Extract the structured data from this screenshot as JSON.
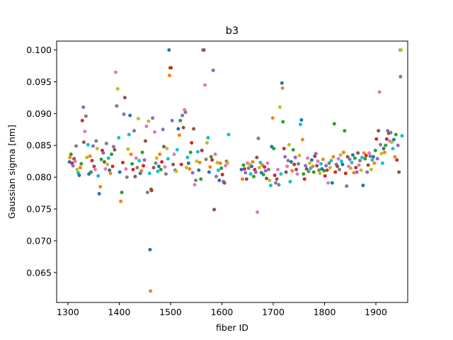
{
  "chart_data": {
    "type": "scatter",
    "title": "b3",
    "xlabel": "fiber ID",
    "ylabel": "Gaussian sigma [nm]",
    "xlim": [
      1278,
      1962
    ],
    "ylim": [
      0.0603,
      0.1014
    ],
    "xticks": [
      1300,
      1400,
      1500,
      1600,
      1700,
      1800,
      1900
    ],
    "yticks": [
      0.065,
      0.07,
      0.075,
      0.08,
      0.085,
      0.09,
      0.095,
      0.1
    ],
    "ytick_labels": [
      "0.065",
      "0.070",
      "0.075",
      "0.080",
      "0.085",
      "0.090",
      "0.095",
      "0.100"
    ],
    "grid": false,
    "legend": "none",
    "palette": [
      "#1f77b4",
      "#ff7f0e",
      "#2ca02c",
      "#d62728",
      "#9467bd",
      "#8c564b",
      "#e377c2",
      "#7f7f7f",
      "#bcbd22",
      "#17becf"
    ],
    "points": [
      [
        1303,
        0.0824
      ],
      [
        1304,
        0.0831
      ],
      [
        1306,
        0.0836
      ],
      [
        1308,
        0.0822
      ],
      [
        1310,
        0.0818
      ],
      [
        1312,
        0.0829
      ],
      [
        1314,
        0.0825
      ],
      [
        1316,
        0.0849
      ],
      [
        1318,
        0.0812
      ],
      [
        1320,
        0.0807
      ],
      [
        1322,
        0.0803
      ],
      [
        1324,
        0.0815
      ],
      [
        1326,
        0.0821
      ],
      [
        1328,
        0.0889
      ],
      [
        1330,
        0.091
      ],
      [
        1331,
        0.0855
      ],
      [
        1333,
        0.0872
      ],
      [
        1335,
        0.0896
      ],
      [
        1337,
        0.0831
      ],
      [
        1339,
        0.0851
      ],
      [
        1341,
        0.0805
      ],
      [
        1343,
        0.0833
      ],
      [
        1345,
        0.0808
      ],
      [
        1347,
        0.0826
      ],
      [
        1349,
        0.0849
      ],
      [
        1351,
        0.0817
      ],
      [
        1353,
        0.0812
      ],
      [
        1355,
        0.0857
      ],
      [
        1357,
        0.0845
      ],
      [
        1359,
        0.0802
      ],
      [
        1361,
        0.0774
      ],
      [
        1363,
        0.0785
      ],
      [
        1365,
        0.0828
      ],
      [
        1367,
        0.0842
      ],
      [
        1369,
        0.0838
      ],
      [
        1371,
        0.0824
      ],
      [
        1373,
        0.0813
      ],
      [
        1375,
        0.0853
      ],
      [
        1377,
        0.082
      ],
      [
        1379,
        0.083
      ],
      [
        1381,
        0.0811
      ],
      [
        1383,
        0.0806
      ],
      [
        1385,
        0.0836
      ],
      [
        1387,
        0.0817
      ],
      [
        1389,
        0.0848
      ],
      [
        1391,
        0.0843
      ],
      [
        1393,
        0.0965
      ],
      [
        1395,
        0.0912
      ],
      [
        1397,
        0.0939
      ],
      [
        1399,
        0.0862
      ],
      [
        1401,
        0.0808
      ],
      [
        1403,
        0.0762
      ],
      [
        1405,
        0.0776
      ],
      [
        1407,
        0.0823
      ],
      [
        1409,
        0.0899
      ],
      [
        1411,
        0.0925
      ],
      [
        1413,
        0.0813
      ],
      [
        1415,
        0.08
      ],
      [
        1417,
        0.0844
      ],
      [
        1419,
        0.0867
      ],
      [
        1421,
        0.0897
      ],
      [
        1423,
        0.0836
      ],
      [
        1425,
        0.0821
      ],
      [
        1427,
        0.0812
      ],
      [
        1429,
        0.0873
      ],
      [
        1431,
        0.0801
      ],
      [
        1433,
        0.083
      ],
      [
        1435,
        0.0815
      ],
      [
        1437,
        0.0892
      ],
      [
        1439,
        0.0826
      ],
      [
        1441,
        0.0806
      ],
      [
        1443,
        0.081
      ],
      [
        1445,
        0.0839
      ],
      [
        1447,
        0.0818
      ],
      [
        1449,
        0.0827
      ],
      [
        1451,
        0.0857
      ],
      [
        1453,
        0.088
      ],
      [
        1455,
        0.0776
      ],
      [
        1457,
        0.0888
      ],
      [
        1459,
        0.0806
      ],
      [
        1460,
        0.0686
      ],
      [
        1461,
        0.0621
      ],
      [
        1462,
        0.0781
      ],
      [
        1463,
        0.0779
      ],
      [
        1465,
        0.0893
      ],
      [
        1467,
        0.0815
      ],
      [
        1469,
        0.0871
      ],
      [
        1471,
        0.0822
      ],
      [
        1473,
        0.083
      ],
      [
        1475,
        0.0809
      ],
      [
        1477,
        0.0817
      ],
      [
        1479,
        0.0836
      ],
      [
        1481,
        0.0812
      ],
      [
        1483,
        0.0824
      ],
      [
        1485,
        0.0875
      ],
      [
        1487,
        0.0848
      ],
      [
        1489,
        0.0816
      ],
      [
        1491,
        0.0805
      ],
      [
        1493,
        0.0845
      ],
      [
        1495,
        0.0829
      ],
      [
        1497,
        0.1
      ],
      [
        1498,
        0.096
      ],
      [
        1499,
        0.0972
      ],
      [
        1501,
        0.0972
      ],
      [
        1503,
        0.0889
      ],
      [
        1505,
        0.082
      ],
      [
        1507,
        0.0836
      ],
      [
        1509,
        0.0811
      ],
      [
        1511,
        0.0809
      ],
      [
        1513,
        0.0843
      ],
      [
        1515,
        0.0876
      ],
      [
        1517,
        0.0866
      ],
      [
        1519,
        0.0889
      ],
      [
        1521,
        0.082
      ],
      [
        1523,
        0.0897
      ],
      [
        1525,
        0.0878
      ],
      [
        1527,
        0.0906
      ],
      [
        1529,
        0.0902
      ],
      [
        1531,
        0.0815
      ],
      [
        1533,
        0.0831
      ],
      [
        1535,
        0.0822
      ],
      [
        1537,
        0.0813
      ],
      [
        1539,
        0.0839
      ],
      [
        1541,
        0.0854
      ],
      [
        1543,
        0.0807
      ],
      [
        1545,
        0.0876
      ],
      [
        1547,
        0.0788
      ],
      [
        1549,
        0.0795
      ],
      [
        1551,
        0.0825
      ],
      [
        1553,
        0.084
      ],
      [
        1555,
        0.0811
      ],
      [
        1557,
        0.0823
      ],
      [
        1559,
        0.0797
      ],
      [
        1561,
        0.0842
      ],
      [
        1563,
        0.1
      ],
      [
        1565,
        0.1
      ],
      [
        1567,
        0.0945
      ],
      [
        1569,
        0.0828
      ],
      [
        1571,
        0.0854
      ],
      [
        1573,
        0.0862
      ],
      [
        1575,
        0.0808
      ],
      [
        1577,
        0.0816
      ],
      [
        1579,
        0.0832
      ],
      [
        1581,
        0.0827
      ],
      [
        1583,
        0.0968
      ],
      [
        1585,
        0.0749
      ],
      [
        1587,
        0.0836
      ],
      [
        1589,
        0.0801
      ],
      [
        1591,
        0.0823
      ],
      [
        1593,
        0.0811
      ],
      [
        1595,
        0.0795
      ],
      [
        1597,
        0.0822
      ],
      [
        1599,
        0.0814
      ],
      [
        1601,
        0.0804
      ],
      [
        1603,
        0.0793
      ],
      [
        1605,
        0.0791
      ],
      [
        1607,
        0.0818
      ],
      [
        1609,
        0.0825
      ],
      [
        1611,
        0.0822
      ],
      [
        1613,
        0.0867
      ],
      [
        1638,
        0.0812
      ],
      [
        1640,
        0.0797
      ],
      [
        1642,
        0.0819
      ],
      [
        1644,
        0.0813
      ],
      [
        1646,
        0.0807
      ],
      [
        1648,
        0.0797
      ],
      [
        1650,
        0.0822
      ],
      [
        1652,
        0.0814
      ],
      [
        1654,
        0.082
      ],
      [
        1656,
        0.0805
      ],
      [
        1658,
        0.0817
      ],
      [
        1660,
        0.0824
      ],
      [
        1662,
        0.0801
      ],
      [
        1664,
        0.0812
      ],
      [
        1666,
        0.0808
      ],
      [
        1668,
        0.0831
      ],
      [
        1669,
        0.0745
      ],
      [
        1671,
        0.0861
      ],
      [
        1673,
        0.0815
      ],
      [
        1675,
        0.0823
      ],
      [
        1677,
        0.0807
      ],
      [
        1679,
        0.0819
      ],
      [
        1681,
        0.0804
      ],
      [
        1683,
        0.0816
      ],
      [
        1685,
        0.081
      ],
      [
        1687,
        0.0798
      ],
      [
        1689,
        0.0822
      ],
      [
        1691,
        0.0812
      ],
      [
        1693,
        0.0795
      ],
      [
        1695,
        0.0787
      ],
      [
        1697,
        0.0848
      ],
      [
        1699,
        0.0893
      ],
      [
        1701,
        0.0845
      ],
      [
        1703,
        0.0803
      ],
      [
        1705,
        0.0791
      ],
      [
        1707,
        0.0797
      ],
      [
        1709,
        0.0812
      ],
      [
        1711,
        0.0788
      ],
      [
        1713,
        0.091
      ],
      [
        1715,
        0.0805
      ],
      [
        1717,
        0.0948
      ],
      [
        1718,
        0.094
      ],
      [
        1719,
        0.0887
      ],
      [
        1721,
        0.0845
      ],
      [
        1723,
        0.0832
      ],
      [
        1725,
        0.0808
      ],
      [
        1727,
        0.0817
      ],
      [
        1729,
        0.0826
      ],
      [
        1731,
        0.0851
      ],
      [
        1733,
        0.0793
      ],
      [
        1735,
        0.0824
      ],
      [
        1737,
        0.081
      ],
      [
        1739,
        0.0843
      ],
      [
        1741,
        0.082
      ],
      [
        1743,
        0.0831
      ],
      [
        1745,
        0.0812
      ],
      [
        1747,
        0.0805
      ],
      [
        1749,
        0.0821
      ],
      [
        1751,
        0.0834
      ],
      [
        1753,
        0.0883
      ],
      [
        1755,
        0.089
      ],
      [
        1757,
        0.0859
      ],
      [
        1759,
        0.0805
      ],
      [
        1761,
        0.0797
      ],
      [
        1763,
        0.0818
      ],
      [
        1765,
        0.0813
      ],
      [
        1767,
        0.083
      ],
      [
        1769,
        0.0809
      ],
      [
        1771,
        0.0822
      ],
      [
        1773,
        0.0814
      ],
      [
        1775,
        0.0827
      ],
      [
        1777,
        0.0817
      ],
      [
        1779,
        0.0808
      ],
      [
        1781,
        0.0833
      ],
      [
        1783,
        0.0837
      ],
      [
        1785,
        0.0818
      ],
      [
        1787,
        0.0825
      ],
      [
        1789,
        0.0811
      ],
      [
        1791,
        0.0806
      ],
      [
        1793,
        0.0821
      ],
      [
        1795,
        0.0813
      ],
      [
        1797,
        0.0828
      ],
      [
        1799,
        0.081
      ],
      [
        1801,
        0.0802
      ],
      [
        1803,
        0.0818
      ],
      [
        1805,
        0.0811
      ],
      [
        1807,
        0.0791
      ],
      [
        1809,
        0.0822
      ],
      [
        1811,
        0.0815
      ],
      [
        1813,
        0.0826
      ],
      [
        1815,
        0.0791
      ],
      [
        1817,
        0.0832
      ],
      [
        1819,
        0.0884
      ],
      [
        1821,
        0.0808
      ],
      [
        1823,
        0.082
      ],
      [
        1825,
        0.0817
      ],
      [
        1827,
        0.0829
      ],
      [
        1829,
        0.0812
      ],
      [
        1831,
        0.0835
      ],
      [
        1833,
        0.0825
      ],
      [
        1835,
        0.082
      ],
      [
        1837,
        0.0839
      ],
      [
        1839,
        0.0873
      ],
      [
        1841,
        0.0806
      ],
      [
        1843,
        0.0786
      ],
      [
        1845,
        0.0832
      ],
      [
        1847,
        0.0817
      ],
      [
        1849,
        0.0828
      ],
      [
        1851,
        0.0814
      ],
      [
        1853,
        0.0823
      ],
      [
        1855,
        0.0835
      ],
      [
        1857,
        0.0807
      ],
      [
        1859,
        0.083
      ],
      [
        1861,
        0.0815
      ],
      [
        1863,
        0.0808
      ],
      [
        1865,
        0.0838
      ],
      [
        1867,
        0.0819
      ],
      [
        1869,
        0.0826
      ],
      [
        1871,
        0.0811
      ],
      [
        1873,
        0.0831
      ],
      [
        1875,
        0.0787
      ],
      [
        1877,
        0.0838
      ],
      [
        1879,
        0.0829
      ],
      [
        1881,
        0.0834
      ],
      [
        1883,
        0.0808
      ],
      [
        1885,
        0.0819
      ],
      [
        1887,
        0.0838
      ],
      [
        1889,
        0.0833
      ],
      [
        1891,
        0.0812
      ],
      [
        1893,
        0.0827
      ],
      [
        1895,
        0.0832
      ],
      [
        1897,
        0.0822
      ],
      [
        1899,
        0.0842
      ],
      [
        1901,
        0.086
      ],
      [
        1903,
        0.0829
      ],
      [
        1905,
        0.0873
      ],
      [
        1907,
        0.0934
      ],
      [
        1909,
        0.0851
      ],
      [
        1911,
        0.0837
      ],
      [
        1913,
        0.0822
      ],
      [
        1915,
        0.0845
      ],
      [
        1917,
        0.0839
      ],
      [
        1919,
        0.085
      ],
      [
        1921,
        0.086
      ],
      [
        1923,
        0.0873
      ],
      [
        1925,
        0.0869
      ],
      [
        1927,
        0.0857
      ],
      [
        1929,
        0.087
      ],
      [
        1931,
        0.0855
      ],
      [
        1933,
        0.0845
      ],
      [
        1935,
        0.0859
      ],
      [
        1937,
        0.0832
      ],
      [
        1939,
        0.0867
      ],
      [
        1941,
        0.0827
      ],
      [
        1943,
        0.085
      ],
      [
        1945,
        0.0808
      ],
      [
        1947,
        0.1
      ],
      [
        1948,
        0.0958
      ],
      [
        1949,
        0.1
      ],
      [
        1951,
        0.0865
      ]
    ]
  }
}
